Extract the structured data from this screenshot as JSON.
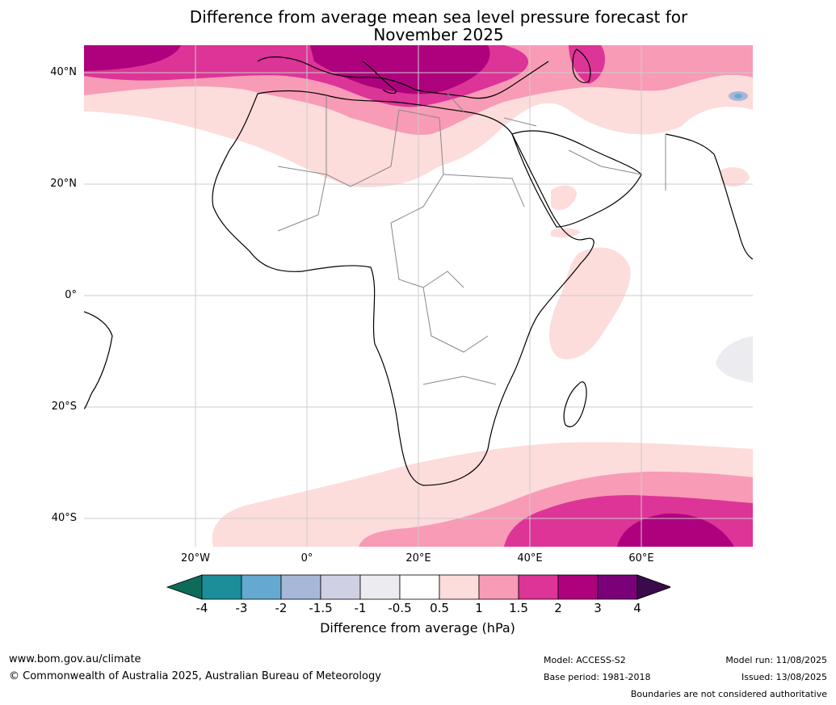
{
  "title_line1": "Difference from average mean sea level pressure forecast for",
  "title_line2": "November 2025",
  "lat_labels": [
    "40°N",
    "20°N",
    "0°",
    "20°S",
    "40°S"
  ],
  "lon_labels": [
    "20°W",
    "0°",
    "20°E",
    "40°E",
    "60°E"
  ],
  "colorbar": {
    "title": "Difference from average (hPa)",
    "ticks": [
      "-4",
      "-3",
      "-2",
      "-1.5",
      "-1",
      "-0.5",
      "0.5",
      "1",
      "1.5",
      "2",
      "3",
      "4"
    ],
    "colors": [
      "#0d6b5a",
      "#1b8e9a",
      "#66a9d0",
      "#a7b7d8",
      "#cfd0e4",
      "#ececf0",
      "#ffffff",
      "#fddcdc",
      "#f89bb6",
      "#dd3497",
      "#ae017e",
      "#7a0177",
      "#3a0a4a"
    ]
  },
  "footer": {
    "url": "www.bom.gov.au/climate",
    "copyright": "© Commonwealth of Australia 2025, Australian Bureau of Meteorology",
    "model": "Model: ACCESS-S2",
    "base_period": "Base period: 1981-2018",
    "model_run": "Model run: 11/08/2025",
    "issued": "Issued: 13/08/2025",
    "disclaimer": "Boundaries are not considered authoritative"
  }
}
